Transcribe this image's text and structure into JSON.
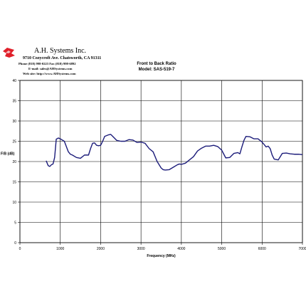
{
  "header": {
    "company_name": "A.H. Systems Inc.",
    "address": "9710 Cozycroft Ave. Chatsworth, CA 91311",
    "phone": "Phone (818) 998-0223 Fax (818) 998-6892",
    "email": "E-mail: sales@AHSystems.com",
    "web": "Web site: http://www.AHSystems.com",
    "logo_icon": "ah-systems-logo-icon",
    "logo_color": "#e0202a"
  },
  "chart_data": {
    "type": "line",
    "title": "Front to Back Ratio",
    "subtitle": "Model: SAS-519-7",
    "xlabel": "Frequency (MHz)",
    "ylabel": "F/B (dB)",
    "xlim": [
      0,
      7000
    ],
    "ylim": [
      0,
      40
    ],
    "xticks": [
      0,
      1000,
      2000,
      3000,
      4000,
      5000,
      6000,
      7000
    ],
    "yticks": [
      0,
      5,
      10,
      15,
      20,
      25,
      30,
      35,
      40
    ],
    "grid": true,
    "legend": "none",
    "line_color": "#1c1c7a",
    "series": [
      {
        "x": [
          650,
          700,
          740,
          780,
          820,
          860,
          900,
          950,
          1000,
          1100,
          1200,
          1250,
          1300,
          1400,
          1500,
          1600,
          1700,
          1750,
          1800,
          1850,
          1900,
          1950,
          2000,
          2050,
          2100,
          2200,
          2250,
          2300,
          2400,
          2500,
          2600,
          2700,
          2800,
          2900,
          3000,
          3100,
          3200,
          3300,
          3400,
          3500,
          3550,
          3600,
          3700,
          3800,
          3900,
          3950,
          4000,
          4100,
          4200,
          4300,
          4400,
          4500,
          4600,
          4700,
          4800,
          4900,
          5000,
          5100,
          5200,
          5300,
          5400,
          5450,
          5500,
          5550,
          5600,
          5700,
          5800,
          5900,
          6000,
          6100,
          6150,
          6200,
          6250,
          6300,
          6400,
          6500,
          6600,
          6700,
          6800,
          6900,
          7000
        ],
        "y": [
          20.2,
          19.0,
          18.8,
          19.2,
          19.4,
          21.0,
          25.5,
          25.8,
          25.6,
          25.0,
          22.4,
          21.8,
          21.6,
          21.0,
          20.8,
          21.6,
          21.6,
          23.2,
          24.5,
          24.6,
          24.0,
          23.9,
          24.0,
          25.0,
          26.2,
          26.6,
          26.7,
          26.2,
          25.2,
          25.0,
          25.0,
          25.4,
          25.3,
          24.7,
          24.8,
          24.5,
          23.2,
          22.4,
          20.0,
          18.4,
          18.0,
          17.9,
          18.0,
          18.6,
          19.2,
          19.4,
          19.3,
          19.6,
          20.4,
          21.2,
          22.6,
          23.3,
          23.8,
          23.8,
          24.0,
          23.7,
          22.8,
          20.9,
          21.0,
          22.0,
          22.2,
          21.9,
          23.6,
          25.2,
          26.2,
          26.1,
          25.6,
          25.6,
          24.8,
          23.6,
          23.8,
          23.2,
          21.6,
          20.6,
          20.4,
          22.0,
          22.1,
          21.9,
          21.8,
          21.8,
          21.7
        ]
      }
    ]
  }
}
